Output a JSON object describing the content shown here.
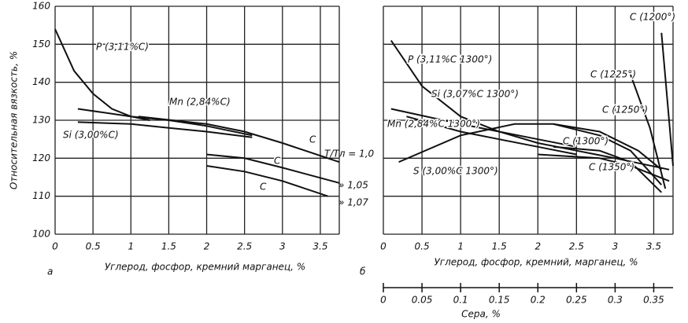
{
  "chart_data": [
    {
      "type": "line",
      "panel": "а",
      "ylabel": "Относительная вязкость, %",
      "xlabel": "Углерод, фосфор, кремний марганец, %",
      "xlim": [
        0,
        3.75
      ],
      "xticks": [
        0,
        0.5,
        1.0,
        1.5,
        2.0,
        2.5,
        3.0,
        3.5
      ],
      "ylim": [
        100,
        160
      ],
      "yticks": [
        100,
        110,
        120,
        130,
        140,
        150,
        160
      ],
      "grid": true,
      "ytick_labels": true,
      "color": "#111111",
      "series": [
        {
          "name": "P (3,11%C)",
          "x": [
            0,
            0.25,
            0.5,
            0.75,
            1.0,
            1.25
          ],
          "values": [
            154,
            143,
            137,
            133,
            131,
            130
          ]
        },
        {
          "name": "Mn (2,84%C)",
          "x": [
            0.3,
            1.0,
            1.5,
            2.0,
            2.6
          ],
          "values": [
            133,
            131,
            130,
            128.5,
            126
          ]
        },
        {
          "name": "Si (3,00%C)",
          "x": [
            0.3,
            1.0,
            1.5,
            2.0,
            2.6
          ],
          "values": [
            129.5,
            129,
            128,
            127,
            125.5
          ]
        },
        {
          "name": "C",
          "x": [
            1.1,
            2.0,
            2.5,
            3.0,
            3.75
          ],
          "values": [
            131,
            129,
            127,
            124,
            119
          ]
        },
        {
          "name": "C",
          "x": [
            2.0,
            2.5,
            3.0,
            3.75
          ],
          "values": [
            121,
            120,
            117.5,
            113.5
          ]
        },
        {
          "name": "C",
          "x": [
            2.0,
            2.5,
            3.0,
            3.6
          ],
          "values": [
            118,
            116.5,
            114,
            110
          ]
        }
      ],
      "annotations": [
        "T/Tл = 1,0",
        "» 1,05",
        "» 1,07"
      ]
    },
    {
      "type": "line",
      "panel": "б",
      "xlabel": "Углерод, фосфор, кремний, марганец, %",
      "x2label": "Сера, %",
      "xlim": [
        0,
        3.75
      ],
      "xticks": [
        0,
        0.5,
        1.0,
        1.5,
        2.0,
        2.5,
        3.0,
        3.5
      ],
      "x2lim": [
        0,
        0.375
      ],
      "x2ticks": [
        0,
        0.05,
        0.1,
        0.15,
        0.2,
        0.25,
        0.3,
        0.35
      ],
      "ylim": [
        100,
        160
      ],
      "yticks": [
        100,
        110,
        120,
        130,
        140,
        150,
        160
      ],
      "grid": true,
      "ytick_labels": false,
      "color": "#111111",
      "series": [
        {
          "name": "P (3,11%C 1300°)",
          "x": [
            0.1,
            0.5,
            1.0,
            1.5,
            2.0,
            2.5,
            3.0,
            3.7
          ],
          "values": [
            151,
            139,
            131,
            127,
            124,
            122,
            120,
            117
          ]
        },
        {
          "name": "Si (3,07%C 1300°)",
          "x": [
            0.3,
            1.0,
            1.5,
            2.0,
            2.5
          ],
          "values": [
            131,
            127,
            125,
            123,
            121
          ]
        },
        {
          "name": "Mn (2,84%C 1300°)",
          "x": [
            0.1,
            1.0,
            1.5,
            2.0,
            2.5
          ],
          "values": [
            133,
            129,
            127,
            125,
            123
          ]
        },
        {
          "name": "S (3,00%C 1300°)",
          "axis": "x2",
          "x": [
            0.02,
            0.1,
            0.17,
            0.22,
            0.28,
            0.33,
            0.36
          ],
          "values": [
            119,
            126,
            129,
            129,
            127,
            122,
            117
          ]
        },
        {
          "name": "C (1200°)",
          "x": [
            3.6,
            3.75
          ],
          "values": [
            153,
            118
          ]
        },
        {
          "name": "C (1225°)",
          "x": [
            3.2,
            3.45,
            3.65
          ],
          "values": [
            142,
            128,
            112
          ]
        },
        {
          "name": "C (1250°)",
          "x": [
            2.2,
            2.8,
            3.2,
            3.6
          ],
          "values": [
            129,
            126,
            122,
            113
          ]
        },
        {
          "name": "C (1300°)",
          "x": [
            2.2,
            2.8,
            3.2,
            3.6
          ],
          "values": [
            123,
            122,
            119,
            111
          ]
        },
        {
          "name": "C (1350°)",
          "x": [
            2.0,
            2.8,
            3.2,
            3.7
          ],
          "values": [
            121,
            120,
            118,
            114
          ]
        }
      ]
    }
  ]
}
